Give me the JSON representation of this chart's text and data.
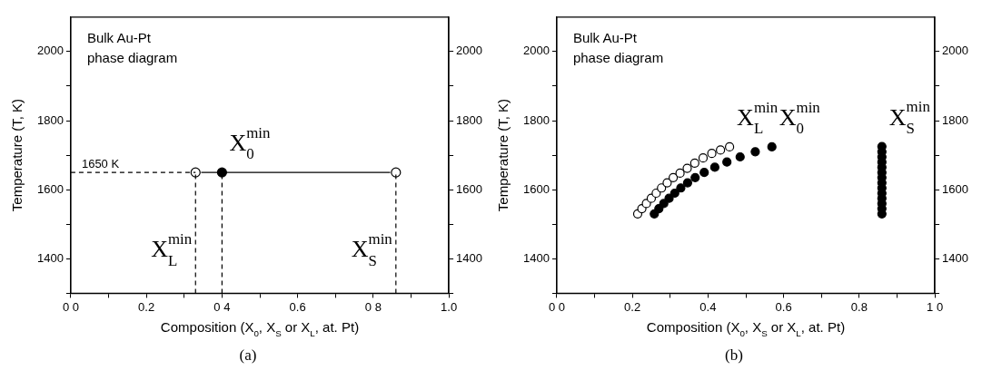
{
  "chart_data": [
    {
      "type": "scatter",
      "title": "Bulk Au-Pt phase diagram",
      "xlabel": "Composition (X$_{0}$, X$_{S}$ or X$_{L}$, at. Pt)",
      "ylabel": "Temperature (T, K)",
      "xlim": [
        0,
        1
      ],
      "xticks": [
        {
          "value": 0,
          "label": "0 0"
        },
        {
          "value": 0.1,
          "label": null
        },
        0.2,
        {
          "value": 0.3,
          "label": null
        },
        {
          "value": 0.4,
          "label": "0 4"
        },
        {
          "value": 0.5,
          "label": null
        },
        0.6,
        {
          "value": 0.7,
          "label": null
        },
        {
          "value": 0.8,
          "label": "0 8"
        },
        {
          "value": 0.9,
          "label": null
        },
        {
          "value": 1,
          "label": "1.0"
        }
      ],
      "ylim": [
        1300,
        2100
      ],
      "yticks": [
        {
          "value": 1300,
          "label": null
        },
        1400,
        {
          "value": 1500,
          "label": null
        },
        1600,
        {
          "value": 1700,
          "label": null
        },
        1800,
        {
          "value": 1900,
          "label": null
        },
        2000
      ],
      "y2lim": [
        1300,
        2100
      ],
      "y2ticks": [
        {
          "value": 1300,
          "label": null
        },
        1400,
        {
          "value": 1500,
          "label": null
        },
        1600,
        {
          "value": 1700,
          "label": null
        },
        1800,
        {
          "value": 1900,
          "label": null
        },
        2000
      ],
      "grid": false,
      "legend": false,
      "series": [
        {
          "type": "line",
          "line_style": "dashed",
          "marker": "none",
          "color": "#000000",
          "x": [
            0,
            0.33
          ],
          "values": [
            1650,
            1650
          ]
        },
        {
          "type": "line",
          "line_style": "dashed",
          "marker": "none",
          "color": "#000000",
          "x": [
            0.33,
            0.33
          ],
          "values": [
            1300,
            1650
          ]
        },
        {
          "type": "line",
          "line_style": "dashed",
          "marker": "none",
          "color": "#000000",
          "x": [
            0.4,
            0.4
          ],
          "values": [
            1300,
            1650
          ]
        },
        {
          "type": "line",
          "line_style": "dashed",
          "marker": "none",
          "color": "#000000",
          "x": [
            0.86,
            0.86
          ],
          "values": [
            1300,
            1650
          ]
        },
        {
          "type": "line",
          "line_style": "solid",
          "marker": "none",
          "color": "#000000",
          "x": [
            0.4,
            0.345
          ],
          "values": [
            1650,
            1650
          ]
        },
        {
          "type": "line",
          "line_style": "solid",
          "marker": "none",
          "color": "#000000",
          "x": [
            0.4,
            0.845
          ],
          "values": [
            1650,
            1650
          ]
        },
        {
          "type": "scatter",
          "marker": "circle",
          "color": "#ffffff",
          "x": [
            0.33
          ],
          "values": [
            1650
          ]
        },
        {
          "type": "scatter",
          "marker": "circle",
          "color": "#000000",
          "x": [
            0.4
          ],
          "values": [
            1650
          ]
        },
        {
          "type": "scatter",
          "marker": "circle",
          "color": "#ffffff",
          "x": [
            0.86
          ],
          "values": [
            1650
          ]
        }
      ],
      "annotations": [
        {
          "text": "1650 K",
          "x": 0,
          "y": 1650
        },
        {
          "text": "X$^{min}$$_{L}$",
          "x": 0.33,
          "y": 1300
        },
        {
          "text": "X$^{min}$$_{0}$",
          "x": 0.4,
          "y": 1650
        },
        {
          "text": "X$^{min}$$_{S}$",
          "x": 0.86,
          "y": 1300
        },
        "(a)"
      ]
    },
    {
      "type": "scatter",
      "title": "Bulk Au-Pt phase diagram",
      "xlabel": "Composition (X$_{0}$, X$_{S}$ or X$_{L}$, at. Pt)",
      "ylabel": "Temperature (T, K)",
      "xlim": [
        0,
        1
      ],
      "xticks": [
        {
          "value": 0,
          "label": "0 0"
        },
        {
          "value": 0.1,
          "label": null
        },
        0.2,
        {
          "value": 0.3,
          "label": null
        },
        0.4,
        {
          "value": 0.5,
          "label": null
        },
        0.6,
        {
          "value": 0.7,
          "label": null
        },
        0.8,
        {
          "value": 0.9,
          "label": null
        },
        {
          "value": 1,
          "label": "1 0"
        }
      ],
      "ylim": [
        1300,
        2100
      ],
      "yticks": [
        {
          "value": 1300,
          "label": null
        },
        1400,
        {
          "value": 1500,
          "label": null
        },
        1600,
        {
          "value": 1700,
          "label": null
        },
        1800,
        {
          "value": 1900,
          "label": null
        },
        2000
      ],
      "y2lim": [
        1300,
        2100
      ],
      "y2ticks": [
        {
          "value": 1300,
          "label": null
        },
        1400,
        {
          "value": 1500,
          "label": null
        },
        1600,
        {
          "value": 1700,
          "label": null
        },
        1800,
        {
          "value": 1900,
          "label": null
        },
        2000
      ],
      "grid": false,
      "legend": false,
      "series": [
        {
          "type": "scatter",
          "marker": "circle",
          "color": "#ffffff",
          "x": [
            0.214,
            0.225,
            0.237,
            0.25,
            0.263,
            0.277,
            0.292,
            0.308,
            0.326,
            0.345,
            0.365,
            0.387,
            0.41,
            0.433,
            0.457
          ],
          "values": [
            1530,
            1545,
            1560,
            1575,
            1590,
            1605,
            1620,
            1635,
            1648,
            1662,
            1677,
            1692,
            1705,
            1715,
            1724
          ]
        },
        {
          "type": "scatter",
          "marker": "circle",
          "color": "#000000",
          "x": [
            0.258,
            0.27,
            0.283,
            0.297,
            0.312,
            0.328,
            0.346,
            0.366,
            0.39,
            0.418,
            0.45,
            0.485,
            0.525,
            0.569
          ],
          "values": [
            1530,
            1545,
            1560,
            1575,
            1590,
            1605,
            1620,
            1635,
            1650,
            1665,
            1680,
            1695,
            1710,
            1724
          ]
        },
        {
          "type": "scatter",
          "marker": "circle",
          "color": "#000000",
          "x": [
            0.86,
            0.86,
            0.86,
            0.86,
            0.86,
            0.86,
            0.86,
            0.86,
            0.86,
            0.86,
            0.86,
            0.86,
            0.86,
            0.86
          ],
          "values": [
            1530,
            1545,
            1560,
            1575,
            1590,
            1605,
            1620,
            1635,
            1650,
            1665,
            1680,
            1695,
            1710,
            1725
          ]
        }
      ],
      "annotations": [
        {
          "text": "X$^{min}$$_{L}$",
          "x": 0.457,
          "y": 1724
        },
        {
          "text": "X$^{min}$$_{0}$",
          "x": 0.569,
          "y": 1724
        },
        {
          "text": "X$^{min}$$_{S}$",
          "x": 0.86,
          "y": 1725
        },
        "(b)"
      ]
    }
  ]
}
